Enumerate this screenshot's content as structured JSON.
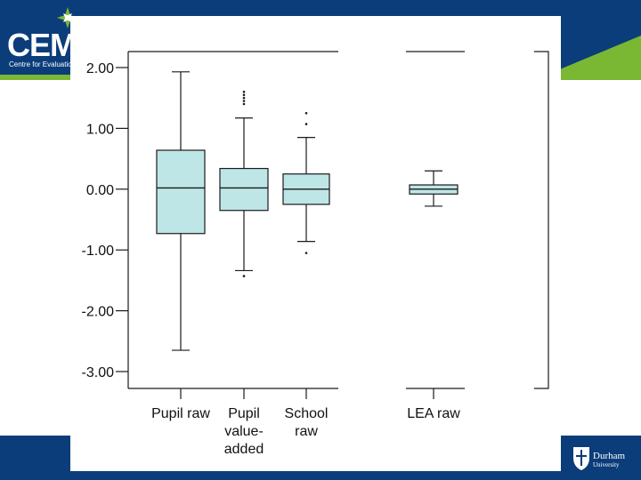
{
  "branding": {
    "logo_text": "CEM",
    "tagline": "Centre for Evaluation",
    "university_name": "Durham",
    "university_sub": "University"
  },
  "colors": {
    "navy": "#0a3d7a",
    "green": "#7ab833",
    "box_fill": "#bfe6e6",
    "line": "#1a1a1a",
    "panel": "#ffffff"
  },
  "chart_data": {
    "type": "box",
    "title": "",
    "xlabel": "",
    "ylabel": "",
    "ylim": [
      -3.3,
      2.2
    ],
    "yticks": [
      2.0,
      1.0,
      0.0,
      -1.0,
      -2.0,
      -3.0
    ],
    "ytick_labels": [
      "2.00",
      "1.00",
      "0.00",
      "-1.00",
      "-2.00",
      "-3.00"
    ],
    "grid": false,
    "categories": [
      {
        "label_lines": [
          "Pupil raw"
        ],
        "min": -2.65,
        "q1": -0.73,
        "median": 0.02,
        "q3": 0.64,
        "max": 1.93,
        "outliers": []
      },
      {
        "label_lines": [
          "Pupil",
          "value-",
          "added"
        ],
        "min": -1.34,
        "q1": -0.35,
        "median": 0.02,
        "q3": 0.34,
        "max": 1.17,
        "outliers": [
          1.6,
          1.55,
          1.5,
          1.45,
          1.4,
          -1.43
        ]
      },
      {
        "label_lines": [
          "School",
          "raw"
        ],
        "min": -0.86,
        "q1": -0.25,
        "median": 0.0,
        "q3": 0.25,
        "max": 0.85,
        "outliers": [
          1.25,
          1.07,
          -1.05
        ]
      },
      {
        "label_lines": [
          "LEA raw"
        ],
        "min": -0.28,
        "q1": -0.08,
        "median": 0.0,
        "q3": 0.07,
        "max": 0.3,
        "outliers": []
      }
    ]
  }
}
